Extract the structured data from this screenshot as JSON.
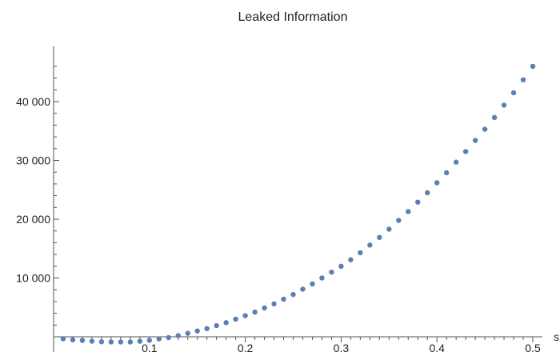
{
  "chart_data": {
    "type": "scatter",
    "title": "Leaked Information",
    "xlabel": "s",
    "ylabel": "",
    "xlim": [
      0.0,
      0.51
    ],
    "ylim": [
      -2000,
      48000
    ],
    "x_ticks": [
      0.1,
      0.2,
      0.3,
      0.4,
      0.5
    ],
    "x_tick_labels": [
      "0.1",
      "0.2",
      "0.3",
      "0.4",
      "0.5"
    ],
    "y_ticks": [
      10000,
      20000,
      30000,
      40000
    ],
    "y_tick_labels": [
      "10 000",
      "20 000",
      "30 000",
      "40 000"
    ],
    "grid": false,
    "point_color": "#5b7fb5",
    "series": [
      {
        "x": [
          0.01,
          0.02,
          0.03,
          0.04,
          0.05,
          0.06,
          0.07,
          0.08,
          0.09,
          0.1,
          0.11,
          0.12,
          0.13,
          0.14,
          0.15,
          0.16,
          0.17,
          0.18,
          0.19,
          0.2,
          0.21,
          0.22,
          0.23,
          0.24,
          0.25,
          0.26,
          0.27,
          0.28,
          0.29,
          0.3,
          0.31,
          0.32,
          0.33,
          0.34,
          0.35,
          0.36,
          0.37,
          0.38,
          0.39,
          0.4,
          0.41,
          0.42,
          0.43,
          0.44,
          0.45,
          0.46,
          0.47,
          0.48,
          0.49,
          0.5
        ],
        "y": [
          -330,
          -510,
          -620,
          -750,
          -850,
          -880,
          -890,
          -880,
          -760,
          -600,
          -360,
          -130,
          200,
          600,
          1000,
          1400,
          1900,
          2400,
          3000,
          3600,
          4200,
          4900,
          5600,
          6400,
          7200,
          8100,
          9000,
          10000,
          11000,
          12000,
          13100,
          14300,
          15600,
          16900,
          18300,
          19800,
          21300,
          22900,
          24500,
          26200,
          27900,
          29700,
          31500,
          33400,
          35300,
          37300,
          39400,
          41500,
          43700,
          46000
        ]
      }
    ]
  }
}
